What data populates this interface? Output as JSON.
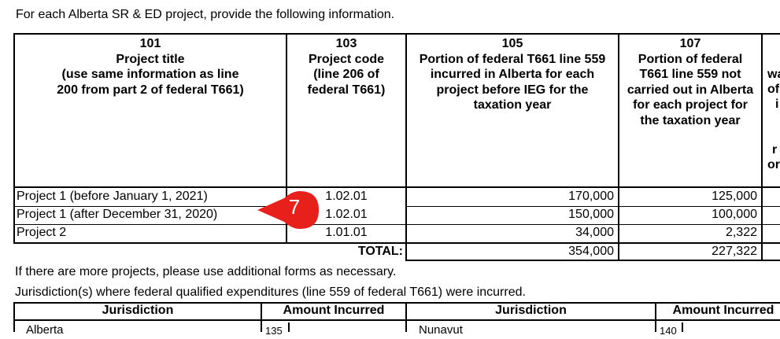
{
  "intro": "For each Alberta SR & ED project, provide the following information.",
  "columns": [
    {
      "line": "101",
      "label": "Project title\n(use same information as line\n200 from part 2 of federal T661)"
    },
    {
      "line": "103",
      "label": "Project code\n(line 206 of\nfederal T661)"
    },
    {
      "line": "105",
      "label": "Portion of federal T661 line 559\nincurred in Alberta for each\nproject before IEG for the\ntaxation year"
    },
    {
      "line": "107",
      "label": "Portion of federal\nT661 line 559 not\ncarried out in Alberta\nfor each project for\nthe taxation year"
    }
  ],
  "cut_column_fragments": [
    "wa",
    "of",
    "i",
    "r",
    "or"
  ],
  "rows": [
    {
      "title": "Project 1 (before January 1, 2021)",
      "code": "1.02.01",
      "c105": "170,000",
      "c107": "125,000"
    },
    {
      "title": "Project 1 (after December 31, 2020)",
      "code": "1.02.01",
      "c105": "150,000",
      "c107": "100,000"
    },
    {
      "title": "Project 2",
      "code": "1.01.01",
      "c105": "34,000",
      "c107": "2,322"
    }
  ],
  "total": {
    "label": "TOTAL:",
    "c105": "354,000",
    "c107": "227,322"
  },
  "callout": {
    "number": "7",
    "color": "#e8201b"
  },
  "more_projects_note": "If there are more projects, please use additional forms as necessary.",
  "jurisdiction_note": "Jurisdiction(s) where federal qualified expenditures (line 559 of federal T661) were incurred.",
  "jurisdiction_table": {
    "headers": [
      "Jurisdiction",
      "Amount Incurred",
      "Jurisdiction",
      "Amount Incurred"
    ],
    "rows": [
      {
        "left_name": "Alberta",
        "left_line": "135",
        "right_name": "Nunavut",
        "right_line": "140"
      }
    ]
  }
}
